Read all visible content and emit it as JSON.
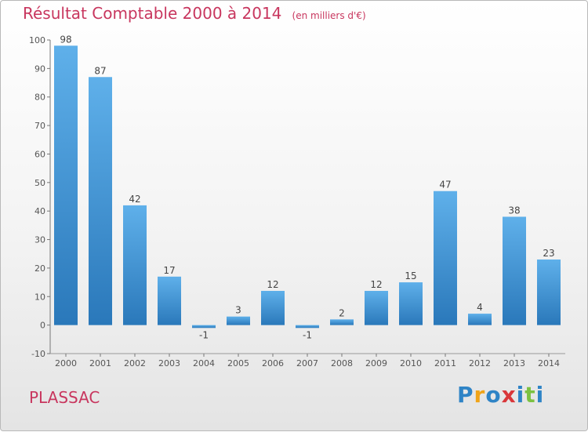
{
  "title": "Résultat Comptable 2000 à 2014",
  "unit_note": "(en milliers d'€)",
  "commune": "PLASSAC",
  "logo": {
    "text": "Proxiti",
    "colors": [
      "#2f84c6",
      "#f0a418",
      "#2f84c6",
      "#d9373a",
      "#2f84c6",
      "#7cc142"
    ]
  },
  "colors": {
    "bar": "#3b8fd3",
    "title": "#c8365e",
    "axis": "#555555"
  },
  "chart_data": {
    "type": "bar",
    "title": "Résultat Comptable 2000 à 2014",
    "xlabel": "",
    "ylabel": "",
    "categories": [
      "2000",
      "2001",
      "2002",
      "2003",
      "2004",
      "2005",
      "2006",
      "2007",
      "2008",
      "2009",
      "2010",
      "2011",
      "2012",
      "2013",
      "2014"
    ],
    "values": [
      98,
      87,
      42,
      17,
      -1,
      3,
      12,
      -1,
      2,
      12,
      15,
      47,
      4,
      38,
      23
    ],
    "labels": [
      "98",
      "87",
      "42",
      "17",
      "-1",
      "3",
      "12",
      "-1",
      "2",
      "12",
      "15",
      "47",
      "4",
      "38",
      "23"
    ],
    "ylim": [
      -10,
      100
    ],
    "yticks": [
      -10,
      0,
      10,
      20,
      30,
      40,
      50,
      60,
      70,
      80,
      90,
      100
    ],
    "grid": false
  }
}
